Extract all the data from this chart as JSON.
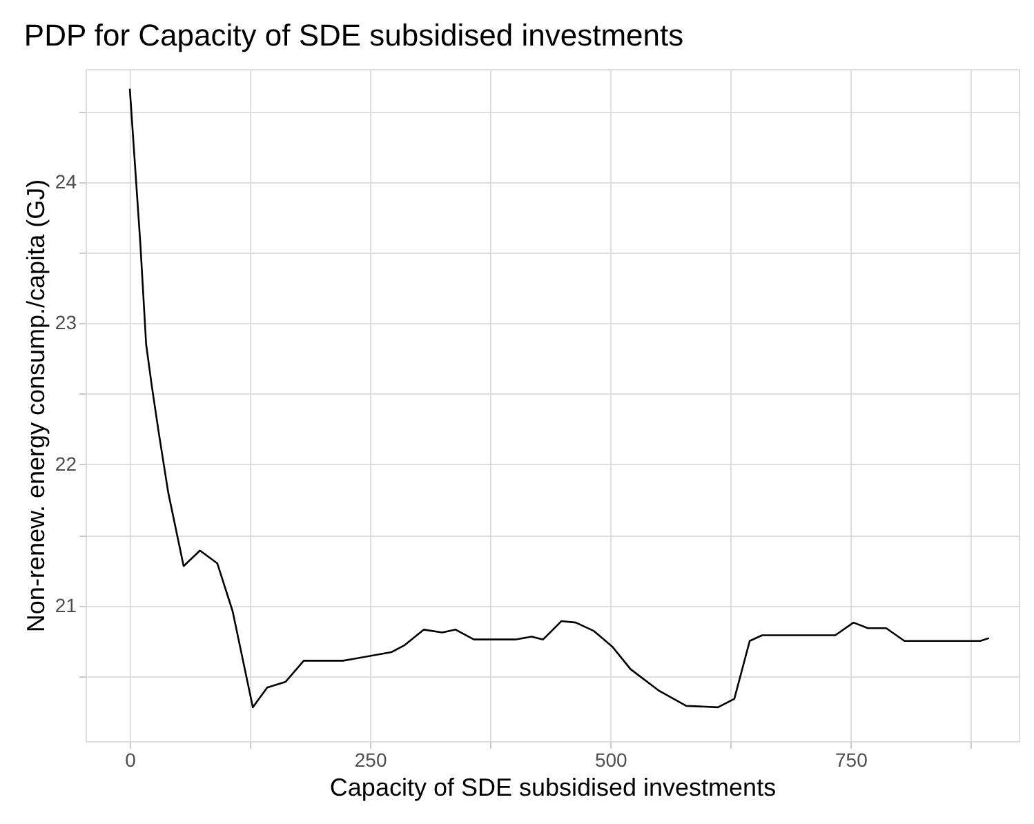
{
  "chart_data": {
    "type": "line",
    "title": "PDP for Capacity of SDE subsidised investments",
    "xlabel": "Capacity of SDE subsidised investments",
    "ylabel": "Non-renew. energy consump./capita (GJ)",
    "x": [
      0,
      11,
      17,
      23,
      30,
      40,
      56,
      73,
      91,
      107,
      128,
      143,
      162,
      181,
      222,
      272,
      286,
      306,
      325,
      339,
      358,
      401,
      418,
      430,
      449,
      464,
      483,
      502,
      521,
      550,
      579,
      612,
      629,
      645,
      658,
      734,
      753,
      768,
      787,
      806,
      885,
      894
    ],
    "series": [
      {
        "color": "#000000",
        "values": [
          24.66,
          23.56,
          22.85,
          22.55,
          22.23,
          21.8,
          21.28,
          21.39,
          21.3,
          20.96,
          20.28,
          20.42,
          20.46,
          20.61,
          20.61,
          20.67,
          20.72,
          20.83,
          20.81,
          20.83,
          20.76,
          20.76,
          20.78,
          20.76,
          20.89,
          20.88,
          20.82,
          20.71,
          20.55,
          20.4,
          20.29,
          20.28,
          20.34,
          20.75,
          20.79,
          20.79,
          20.88,
          20.84,
          20.84,
          20.75,
          20.75,
          20.77
        ]
      }
    ],
    "xlim": [
      -46,
      925
    ],
    "ylim": [
      20.04,
      24.8
    ],
    "xticks": [
      0,
      {
        "value": 125,
        "label": null
      },
      250,
      {
        "value": 375,
        "label": null
      },
      500,
      {
        "value": 625,
        "label": null
      },
      750,
      {
        "value": 875,
        "label": null
      }
    ],
    "yticks": [
      {
        "value": 20.5,
        "label": null
      },
      21,
      {
        "value": 21.5,
        "label": null
      },
      22,
      {
        "value": 22.5,
        "label": null
      },
      23,
      {
        "value": 23.5,
        "label": null
      },
      24,
      {
        "value": 24.5,
        "label": null
      }
    ],
    "grid": true,
    "marker": "none",
    "line_style": "solid"
  }
}
